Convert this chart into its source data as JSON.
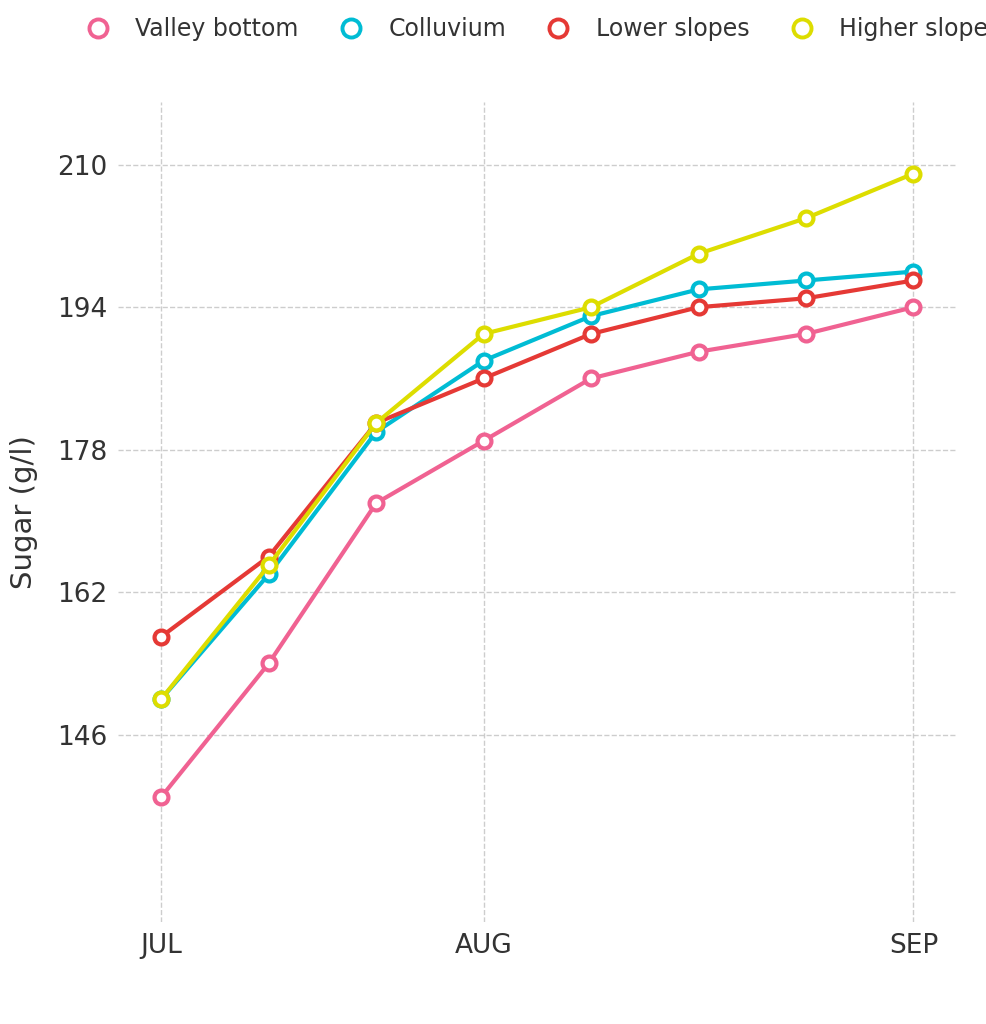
{
  "series": {
    "Valley bottom": {
      "color": "#F06292",
      "values": [
        139,
        154,
        172,
        179,
        186,
        189,
        191,
        194
      ]
    },
    "Colluvium": {
      "color": "#00BCD4",
      "values": [
        150,
        164,
        180,
        188,
        193,
        196,
        197,
        198
      ]
    },
    "Lower slopes": {
      "color": "#E53935",
      "values": [
        157,
        166,
        181,
        186,
        191,
        194,
        195,
        197
      ]
    },
    "Higher slopes": {
      "color": "#DDDD00",
      "values": [
        150,
        165,
        181,
        191,
        194,
        200,
        204,
        209
      ]
    }
  },
  "x_positions": [
    0,
    1,
    2,
    3,
    4,
    5,
    6,
    7
  ],
  "x_ticks": [
    0,
    3,
    7
  ],
  "x_tick_labels": [
    "JUL",
    "AUG",
    "SEP"
  ],
  "y_ticks": [
    146,
    162,
    178,
    194,
    210
  ],
  "ylabel": "Sugar (g/l)",
  "ylim": [
    125,
    217
  ],
  "xlim": [
    -0.4,
    7.4
  ],
  "background_color": "#FFFFFF",
  "grid_color": "#C8C8C8",
  "marker_size": 10,
  "line_width": 3.0
}
